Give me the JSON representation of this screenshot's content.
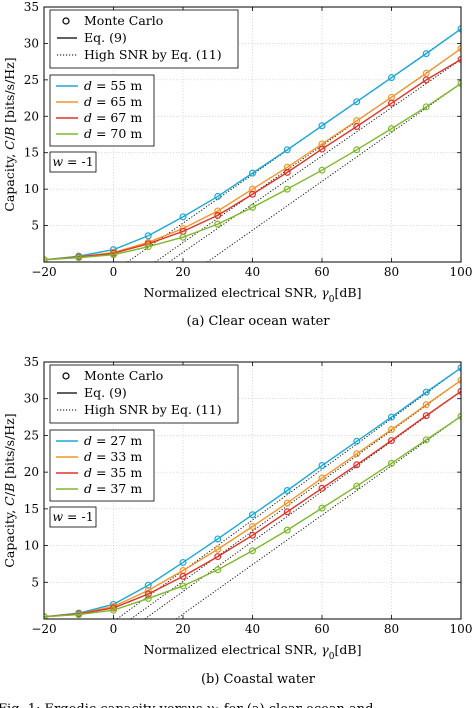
{
  "figure_caption_fragment": "Fig. 1: Ergodic capacity versus γ₀ for (a) clear ocean and",
  "chart_data": [
    {
      "type": "line",
      "caption": "(a) Clear ocean water",
      "xlabel": "Normalized electrical SNR, γ0[dB]",
      "ylabel": "Capacity, C/B [bits/s/Hz]",
      "xlim": [
        -20,
        100
      ],
      "ylim": [
        0,
        35
      ],
      "xticks": [
        -20,
        0,
        20,
        40,
        60,
        80,
        100
      ],
      "yticks": [
        5,
        10,
        15,
        20,
        25,
        30,
        35
      ],
      "grid": true,
      "x": [
        -20,
        -10,
        0,
        10,
        20,
        30,
        40,
        50,
        60,
        70,
        80,
        90,
        100
      ],
      "legend_main": [
        "Monte Carlo",
        "Eq. (9)",
        "High SNR by Eq. (11)"
      ],
      "annotation": "w = -1",
      "series": [
        {
          "name": "d = 55 m",
          "color": "#1ba8d8",
          "values": [
            0.3,
            0.8,
            1.7,
            3.6,
            6.2,
            9.0,
            12.2,
            15.4,
            18.7,
            22.0,
            25.3,
            28.6,
            32.0
          ],
          "asymptote": [
            [
              4,
              0
            ],
            [
              100,
              32.0
            ]
          ]
        },
        {
          "name": "d = 65 m",
          "color": "#f2962a",
          "values": [
            0.3,
            0.7,
            1.3,
            2.7,
            4.6,
            7.0,
            10.0,
            13.0,
            16.2,
            19.4,
            22.6,
            25.9,
            29.3
          ],
          "asymptote": [
            [
              12,
              0
            ],
            [
              100,
              29.3
            ]
          ]
        },
        {
          "name": "d = 67 m",
          "color": "#e0322a",
          "values": [
            0.3,
            0.7,
            1.2,
            2.5,
            4.2,
            6.4,
            9.3,
            12.3,
            15.5,
            18.6,
            21.8,
            25.0,
            27.8
          ],
          "asymptote": [
            [
              16,
              0
            ],
            [
              100,
              27.8
            ]
          ]
        },
        {
          "name": "d = 70 m",
          "color": "#7db82d",
          "values": [
            0.3,
            0.6,
            1.0,
            2.1,
            3.4,
            5.2,
            7.5,
            10.0,
            12.6,
            15.4,
            18.3,
            21.3,
            24.5
          ],
          "asymptote": [
            [
              27,
              0
            ],
            [
              100,
              24.5
            ]
          ]
        }
      ]
    },
    {
      "type": "line",
      "caption": "(b) Coastal water",
      "xlabel": "Normalized electrical SNR, γ0[dB]",
      "ylabel": "Capacity, C/B [bits/s/Hz]",
      "xlim": [
        -20,
        100
      ],
      "ylim": [
        0,
        35
      ],
      "xticks": [
        -20,
        0,
        20,
        40,
        60,
        80,
        100
      ],
      "yticks": [
        5,
        10,
        15,
        20,
        25,
        30,
        35
      ],
      "grid": true,
      "x": [
        -20,
        -10,
        0,
        10,
        20,
        30,
        40,
        50,
        60,
        70,
        80,
        90,
        100
      ],
      "legend_main": [
        "Monte Carlo",
        "Eq. (9)",
        "High SNR by Eq. (11)"
      ],
      "annotation": "w = -1",
      "series": [
        {
          "name": "d = 27 m",
          "color": "#1ba8d8",
          "values": [
            0.3,
            0.8,
            2.0,
            4.6,
            7.7,
            10.9,
            14.2,
            17.5,
            20.9,
            24.2,
            27.5,
            30.9,
            34.2
          ],
          "asymptote": [
            [
              1,
              0
            ],
            [
              100,
              34.2
            ]
          ]
        },
        {
          "name": "d = 33 m",
          "color": "#f2962a",
          "values": [
            0.3,
            0.7,
            1.7,
            3.9,
            6.6,
            9.5,
            12.6,
            15.8,
            19.2,
            22.5,
            25.8,
            29.2,
            32.5
          ],
          "asymptote": [
            [
              5,
              0
            ],
            [
              100,
              32.5
            ]
          ]
        },
        {
          "name": "d = 35 m",
          "color": "#e0322a",
          "values": [
            0.3,
            0.7,
            1.5,
            3.4,
            5.8,
            8.5,
            11.4,
            14.6,
            17.8,
            21.0,
            24.3,
            27.7,
            31.0
          ],
          "asymptote": [
            [
              9,
              0
            ],
            [
              100,
              31.0
            ]
          ]
        },
        {
          "name": "d = 37 m",
          "color": "#7db82d",
          "values": [
            0.3,
            0.6,
            1.2,
            2.8,
            4.5,
            6.7,
            9.3,
            12.1,
            15.1,
            18.1,
            21.2,
            24.4,
            27.6
          ],
          "asymptote": [
            [
              18,
              0
            ],
            [
              100,
              27.6
            ]
          ]
        }
      ]
    }
  ]
}
